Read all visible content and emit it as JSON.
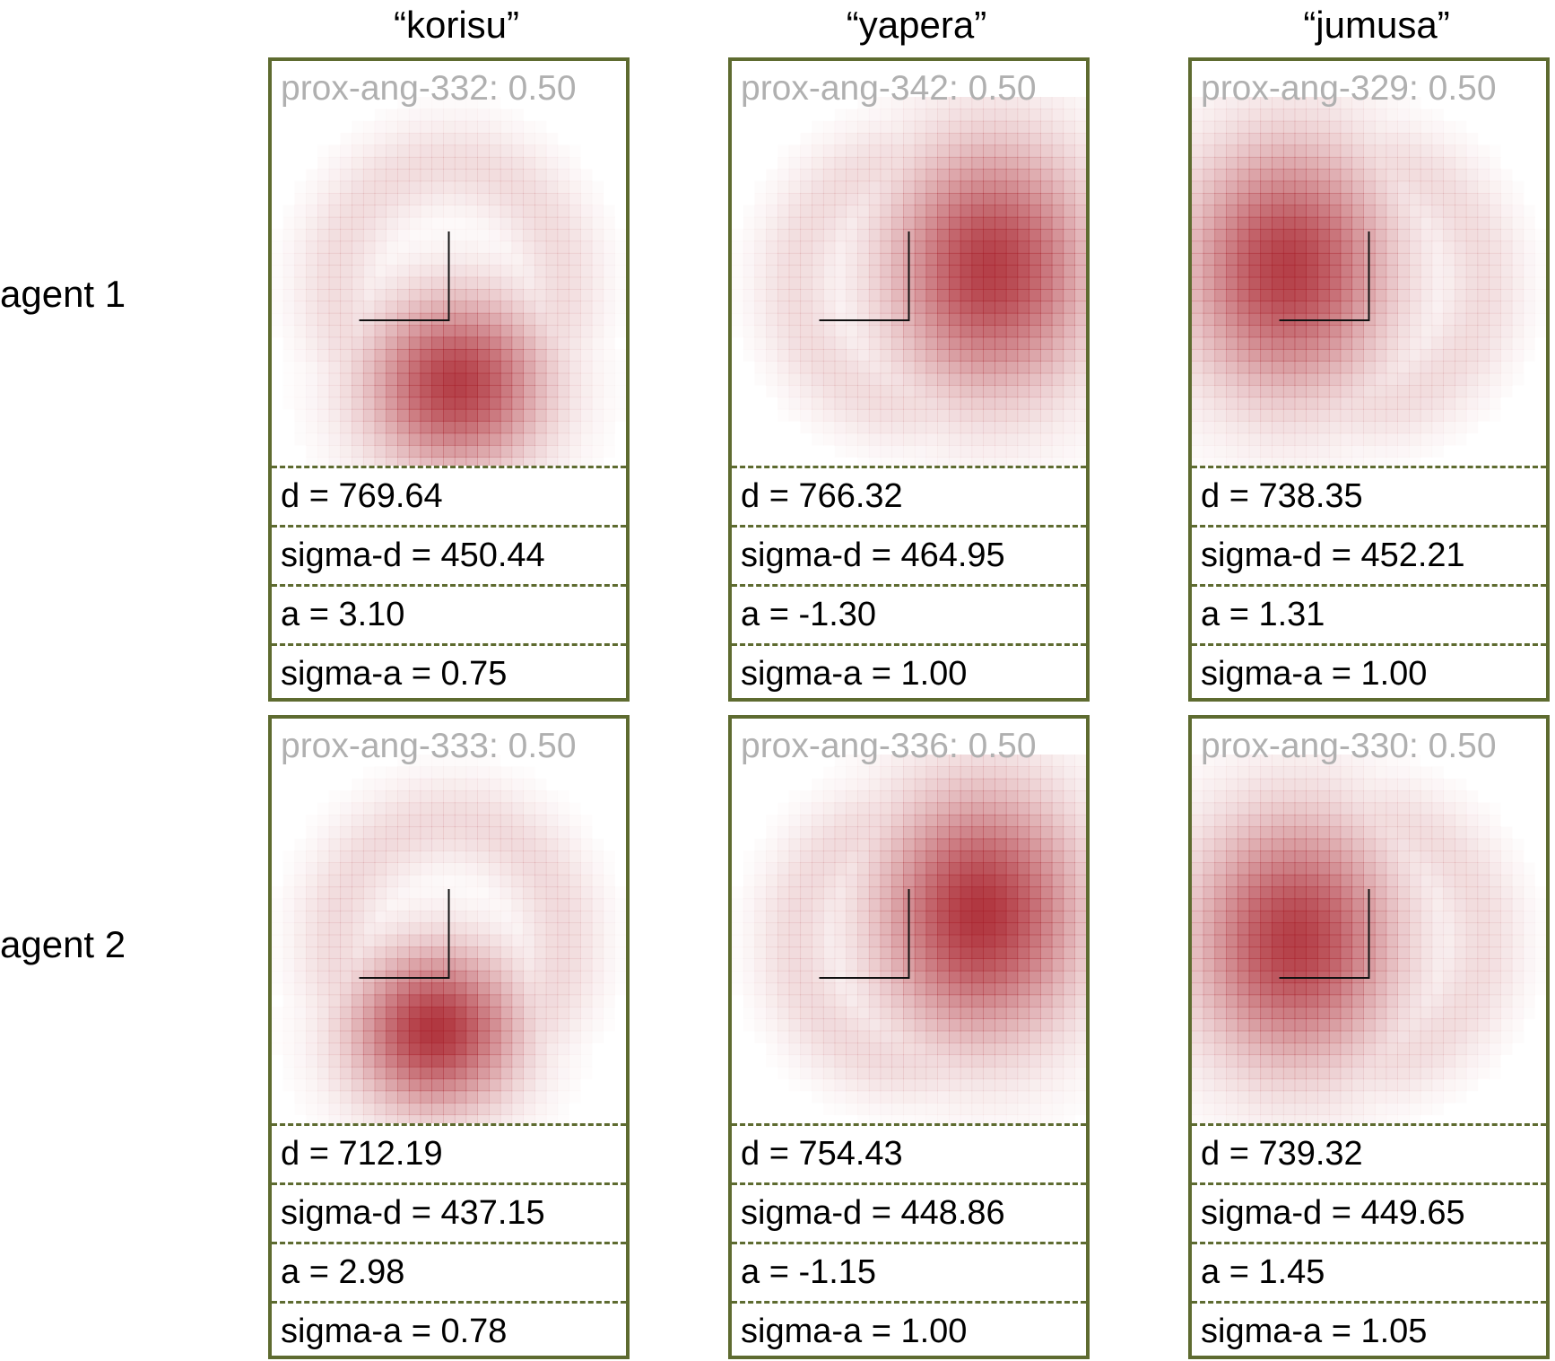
{
  "columns": [
    "“korisu”",
    "“yapera”",
    "“jumusa”"
  ],
  "rows": [
    {
      "label": "agent 1",
      "panels": [
        {
          "id": "prox-ang-332: 0.50",
          "d": "d = 769.64",
          "sigma_d": "sigma-d = 450.44",
          "a": "a = 3.10",
          "sigma_a": "sigma-a = 0.75",
          "peak": [
            0.02,
            0.27
          ],
          "spread": [
            0.3,
            0.28
          ],
          "intensity": 0.95
        },
        {
          "id": "prox-ang-342: 0.50",
          "d": "d = 766.32",
          "sigma_d": "sigma-d = 464.95",
          "a": "a = -1.30",
          "sigma_a": "sigma-a = 1.00",
          "peak": [
            0.23,
            -0.04
          ],
          "spread": [
            0.34,
            0.4
          ],
          "intensity": 0.95
        },
        {
          "id": "prox-ang-329: 0.50",
          "d": "d = 738.35",
          "sigma_d": "sigma-d = 452.21",
          "a": "a = 1.31",
          "sigma_a": "sigma-a = 1.00",
          "peak": [
            -0.23,
            -0.04
          ],
          "spread": [
            0.34,
            0.4
          ],
          "intensity": 0.95
        }
      ]
    },
    {
      "label": "agent 2",
      "panels": [
        {
          "id": "prox-ang-333: 0.50",
          "d": "d = 712.19",
          "sigma_d": "sigma-d = 437.15",
          "a": "a = 2.98",
          "sigma_a": "sigma-a = 0.78",
          "peak": [
            -0.04,
            0.24
          ],
          "spread": [
            0.28,
            0.26
          ],
          "intensity": 1.0
        },
        {
          "id": "prox-ang-336: 0.50",
          "d": "d = 754.43",
          "sigma_d": "sigma-d = 448.86",
          "a": "a = -1.15",
          "sigma_a": "sigma-a = 1.00",
          "peak": [
            0.2,
            -0.07
          ],
          "spread": [
            0.34,
            0.4
          ],
          "intensity": 1.0
        },
        {
          "id": "prox-ang-330: 0.50",
          "d": "d = 739.32",
          "sigma_d": "sigma-d = 449.65",
          "a": "a = 1.45",
          "sigma_a": "sigma-a = 1.05",
          "peak": [
            -0.21,
            0.0
          ],
          "spread": [
            0.34,
            0.4
          ],
          "intensity": 0.95
        }
      ]
    }
  ],
  "colors": {
    "frame": "#5e6b30",
    "heat": "#a8202a",
    "label_grey": "#b0b0b0"
  }
}
